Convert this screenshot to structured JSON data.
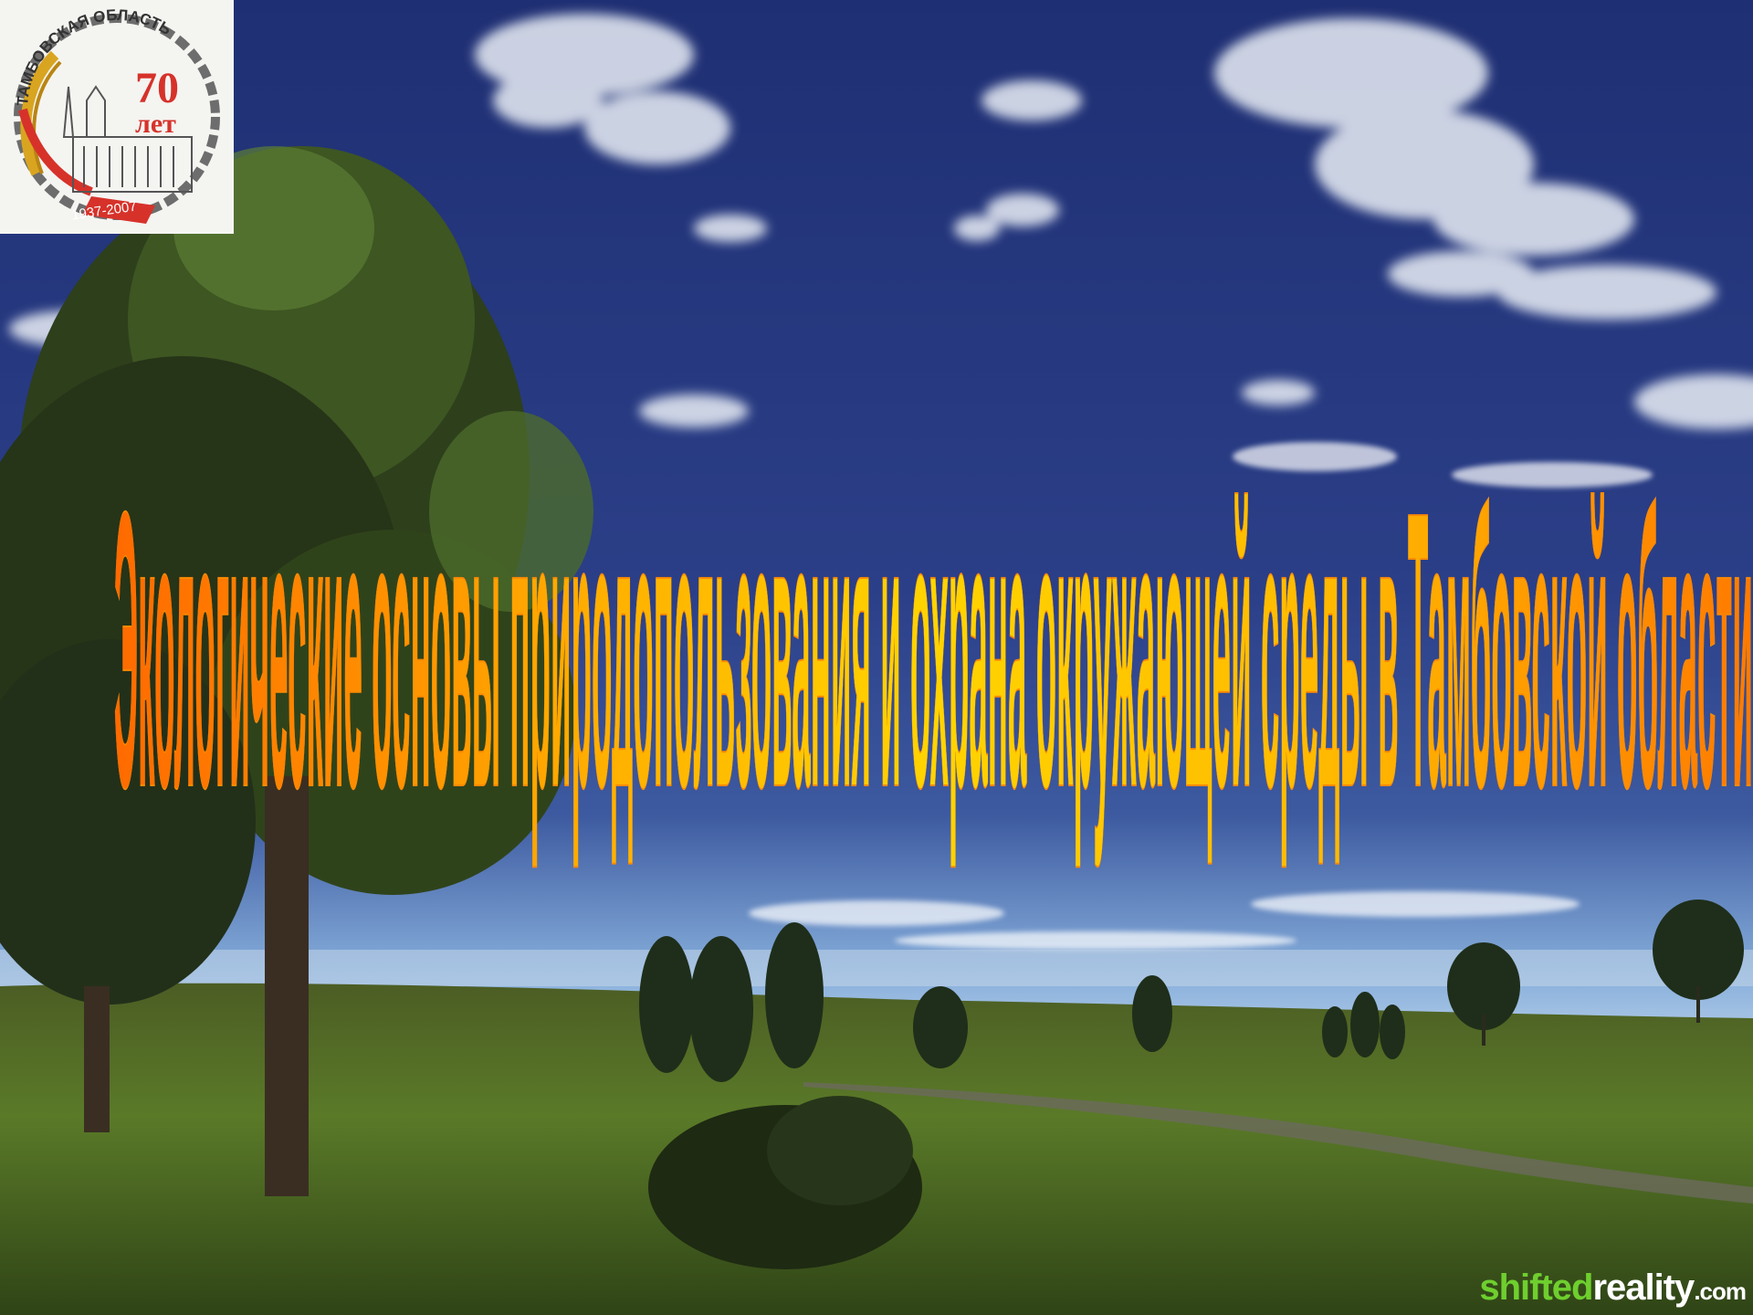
{
  "title": "Экологические основы природопользования и охрана окружающей среды в Тамбовской области",
  "logo": {
    "region_text": "ТАМБОВСКАЯ ОБЛАСТЬ",
    "anniversary_number": "70",
    "anniversary_word": "лет",
    "years": "1937-2007"
  },
  "watermark": {
    "brand_part1": "shifted",
    "brand_part2": "reality",
    "domain_suffix": ".com"
  },
  "colors": {
    "sky_top": "#22357a",
    "sky_horizon": "#7aa6d6",
    "title_orange": "#ff7a00",
    "title_yellow": "#ffd000",
    "grass": "#4f6a22"
  }
}
